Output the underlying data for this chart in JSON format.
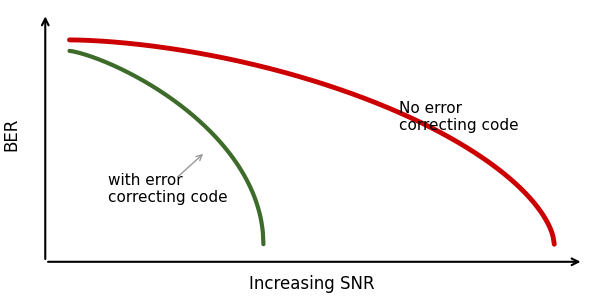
{
  "background_color": "#ffffff",
  "xlabel": "Increasing SNR",
  "ylabel": "BER",
  "xlabel_fontsize": 12,
  "ylabel_fontsize": 12,
  "red_curve_color": "#cc0000",
  "green_curve_color": "#3d6b2a",
  "red_label": "No error\ncorrecting code",
  "green_label": "with error\ncorrecting code",
  "text_fontsize": 11
}
